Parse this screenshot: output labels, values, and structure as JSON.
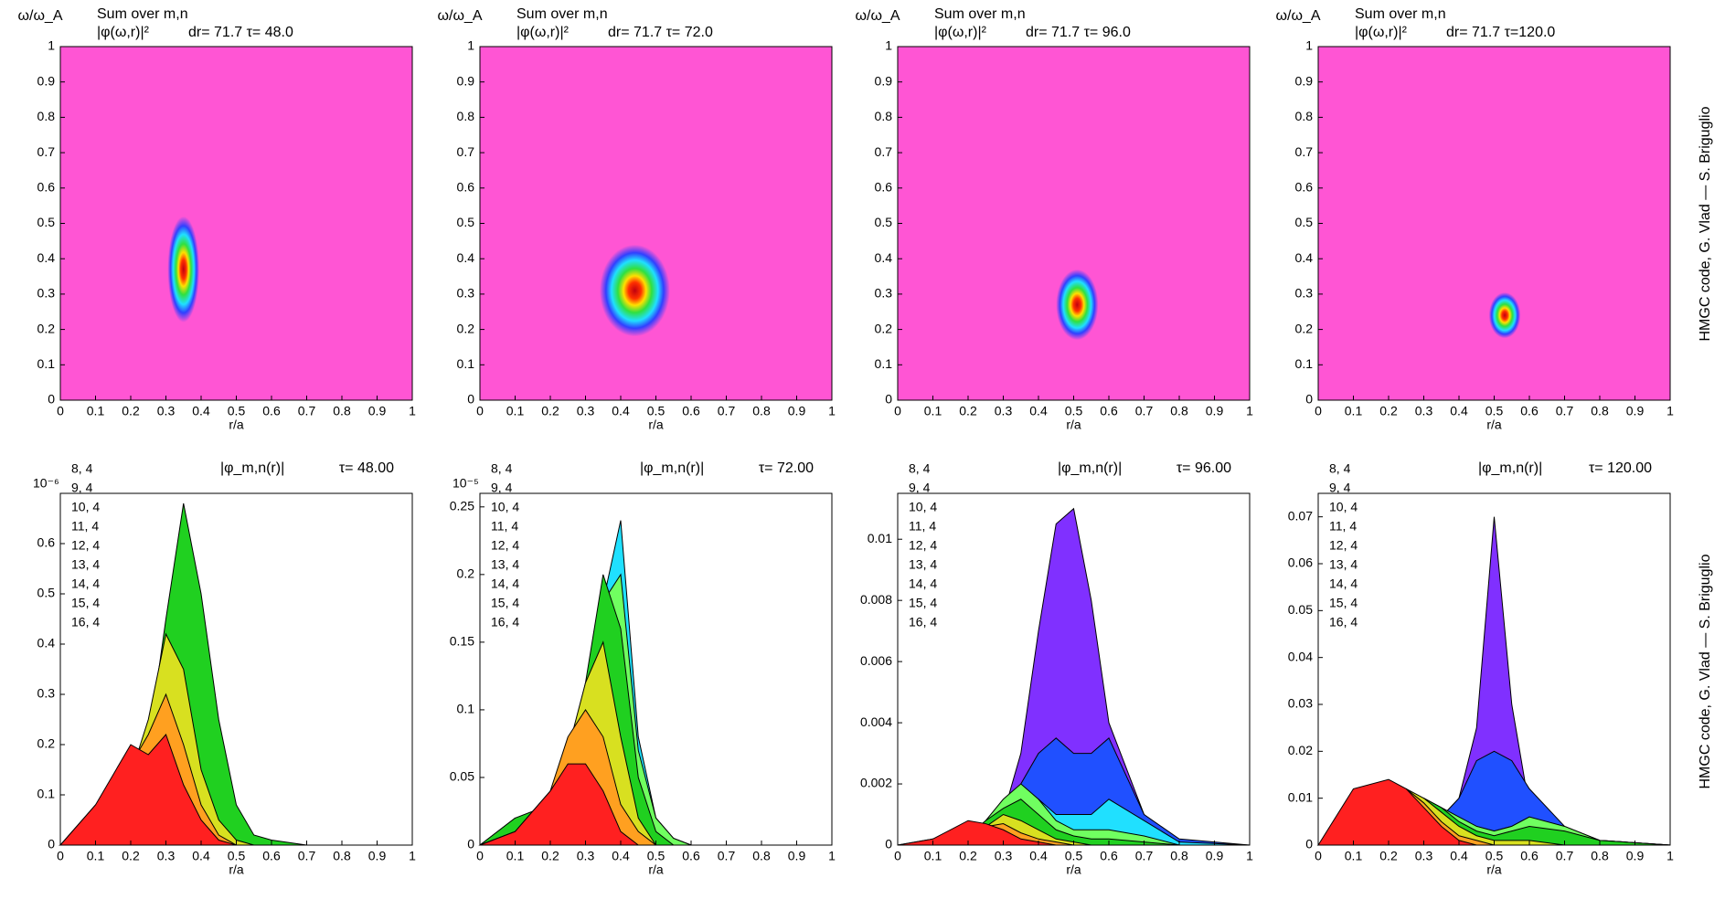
{
  "credits": [
    "HMGC code, G. Vlad — S. Briguglio",
    "HMGC code, G. Vlad — S. Briguglio"
  ],
  "chart_data": [
    {
      "type": "heatmap",
      "ylabel": "ω/ω_A",
      "title": "Sum over m,n",
      "subtitle": "|φ(ω,r)|²",
      "annotation": "dr= 71.7 τ= 48.0",
      "xlabel": "r/a",
      "color": "#ff55d4",
      "xlim": [
        0,
        1
      ],
      "ylim": [
        0,
        1
      ],
      "xticks": [
        0,
        0.1,
        0.2,
        0.3,
        0.4,
        0.5,
        0.6,
        0.7,
        0.8,
        0.9,
        1
      ],
      "yticks": [
        0,
        0.1,
        0.2,
        0.3,
        0.4,
        0.5,
        0.6,
        0.7,
        0.8,
        0.9,
        1
      ],
      "peak": {
        "r": 0.35,
        "omega": 0.37,
        "dr": 0.045,
        "domega": 0.15
      }
    },
    {
      "type": "heatmap",
      "ylabel": "ω/ω_A",
      "title": "Sum over m,n",
      "subtitle": "|φ(ω,r)|²",
      "annotation": "dr= 71.7 τ= 72.0",
      "xlabel": "r/a",
      "color": "#ff55d4",
      "xlim": [
        0,
        1
      ],
      "ylim": [
        0,
        1
      ],
      "xticks": [
        0,
        0.1,
        0.2,
        0.3,
        0.4,
        0.5,
        0.6,
        0.7,
        0.8,
        0.9,
        1
      ],
      "yticks": [
        0,
        0.1,
        0.2,
        0.3,
        0.4,
        0.5,
        0.6,
        0.7,
        0.8,
        0.9,
        1
      ],
      "peak": {
        "r": 0.44,
        "omega": 0.31,
        "dr": 0.1,
        "domega": 0.13
      }
    },
    {
      "type": "heatmap",
      "ylabel": "ω/ω_A",
      "title": "Sum over m,n",
      "subtitle": "|φ(ω,r)|²",
      "annotation": "dr= 71.7 τ= 96.0",
      "xlabel": "r/a",
      "color": "#ff55d4",
      "xlim": [
        0,
        1
      ],
      "ylim": [
        0,
        1
      ],
      "xticks": [
        0,
        0.1,
        0.2,
        0.3,
        0.4,
        0.5,
        0.6,
        0.7,
        0.8,
        0.9,
        1
      ],
      "yticks": [
        0,
        0.1,
        0.2,
        0.3,
        0.4,
        0.5,
        0.6,
        0.7,
        0.8,
        0.9,
        1
      ],
      "peak": {
        "r": 0.51,
        "omega": 0.27,
        "dr": 0.06,
        "domega": 0.1
      }
    },
    {
      "type": "heatmap",
      "ylabel": "ω/ω_A",
      "title": "Sum over m,n",
      "subtitle": "|φ(ω,r)|²",
      "annotation": "dr= 71.7 τ=120.0",
      "xlabel": "r/a",
      "color": "#ff55d4",
      "xlim": [
        0,
        1
      ],
      "ylim": [
        0,
        1
      ],
      "xticks": [
        0,
        0.1,
        0.2,
        0.3,
        0.4,
        0.5,
        0.6,
        0.7,
        0.8,
        0.9,
        1
      ],
      "yticks": [
        0,
        0.1,
        0.2,
        0.3,
        0.4,
        0.5,
        0.6,
        0.7,
        0.8,
        0.9,
        1
      ],
      "peak": {
        "r": 0.53,
        "omega": 0.24,
        "dr": 0.045,
        "domega": 0.065
      }
    },
    {
      "type": "area",
      "title": "|φ_m,n(r)|",
      "annotation": "τ= 48.00",
      "xlabel": "r/a",
      "yscale": "10⁻⁶",
      "xlim": [
        0,
        1
      ],
      "ylim": [
        0,
        0.7
      ],
      "xticks": [
        0,
        0.1,
        0.2,
        0.3,
        0.4,
        0.5,
        0.6,
        0.7,
        0.8,
        0.9,
        1
      ],
      "yticks": [
        0,
        0.1,
        0.2,
        0.3,
        0.4,
        0.5,
        0.6
      ],
      "x": [
        0,
        0.1,
        0.2,
        0.25,
        0.3,
        0.35,
        0.4,
        0.45,
        0.5,
        0.55,
        0.6,
        0.7,
        0.8,
        1
      ],
      "series": [
        {
          "name": "8, 4",
          "color": "#e000e0",
          "values": [
            0,
            0.02,
            0.03,
            0.03,
            0.03,
            0.02,
            0.01,
            0.005,
            0,
            0,
            0,
            0,
            0,
            0
          ]
        },
        {
          "name": "9, 4",
          "color": "#8030ff",
          "values": [
            0,
            0.06,
            0.1,
            0.1,
            0.08,
            0.06,
            0.03,
            0.01,
            0,
            0,
            0,
            0,
            0,
            0
          ]
        },
        {
          "name": "10, 4",
          "color": "#2050ff",
          "values": [
            0,
            0.08,
            0.14,
            0.15,
            0.16,
            0.12,
            0.06,
            0.02,
            0.01,
            0,
            0,
            0,
            0,
            0
          ]
        },
        {
          "name": "11, 4",
          "color": "#20e0ff",
          "values": [
            0,
            0.05,
            0.12,
            0.18,
            0.24,
            0.2,
            0.1,
            0.04,
            0.01,
            0,
            0,
            0,
            0,
            0
          ]
        },
        {
          "name": "12, 4",
          "color": "#70ff60",
          "values": [
            0,
            0.04,
            0.12,
            0.22,
            0.4,
            0.45,
            0.3,
            0.12,
            0.03,
            0.01,
            0,
            0,
            0,
            0
          ]
        },
        {
          "name": "13, 4",
          "color": "#20d020",
          "values": [
            0,
            0.03,
            0.1,
            0.2,
            0.45,
            0.68,
            0.5,
            0.25,
            0.08,
            0.02,
            0.01,
            0,
            0,
            0
          ]
        },
        {
          "name": "14, 4",
          "color": "#d8e020",
          "values": [
            0,
            0.04,
            0.14,
            0.25,
            0.42,
            0.35,
            0.15,
            0.05,
            0.01,
            0,
            0,
            0,
            0,
            0
          ]
        },
        {
          "name": "15, 4",
          "color": "#ffa020",
          "values": [
            0,
            0.06,
            0.16,
            0.22,
            0.3,
            0.2,
            0.08,
            0.02,
            0,
            0,
            0,
            0,
            0,
            0
          ]
        },
        {
          "name": "16, 4",
          "color": "#ff2020",
          "values": [
            0,
            0.08,
            0.2,
            0.18,
            0.22,
            0.12,
            0.05,
            0.01,
            0,
            0,
            0,
            0,
            0,
            0
          ]
        }
      ]
    },
    {
      "type": "area",
      "title": "|φ_m,n(r)|",
      "annotation": "τ= 72.00",
      "xlabel": "r/a",
      "yscale": "10⁻⁵",
      "xlim": [
        0,
        1
      ],
      "ylim": [
        0,
        0.26
      ],
      "xticks": [
        0,
        0.1,
        0.2,
        0.3,
        0.4,
        0.5,
        0.6,
        0.7,
        0.8,
        0.9,
        1
      ],
      "yticks": [
        0,
        0.05,
        0.1,
        0.15,
        0.2,
        0.25
      ],
      "x": [
        0,
        0.1,
        0.2,
        0.25,
        0.3,
        0.35,
        0.4,
        0.45,
        0.5,
        0.55,
        0.6,
        0.7,
        0.8,
        1
      ],
      "series": [
        {
          "name": "8, 4",
          "color": "#e000e0",
          "values": [
            0,
            0.005,
            0.005,
            0.005,
            0,
            0,
            0,
            0,
            0,
            0,
            0,
            0,
            0,
            0
          ]
        },
        {
          "name": "9, 4",
          "color": "#8030ff",
          "values": [
            0,
            0.01,
            0.01,
            0.01,
            0.005,
            0.005,
            0,
            0,
            0,
            0,
            0,
            0,
            0,
            0
          ]
        },
        {
          "name": "10, 4",
          "color": "#2050ff",
          "values": [
            0,
            0.005,
            0.01,
            0.02,
            0.04,
            0.06,
            0.05,
            0.02,
            0.01,
            0.005,
            0,
            0,
            0,
            0
          ]
        },
        {
          "name": "11, 4",
          "color": "#20e0ff",
          "values": [
            0,
            0.005,
            0.01,
            0.03,
            0.08,
            0.18,
            0.24,
            0.08,
            0.02,
            0.005,
            0,
            0,
            0,
            0
          ]
        },
        {
          "name": "12, 4",
          "color": "#70ff60",
          "values": [
            0,
            0.02,
            0.02,
            0.05,
            0.1,
            0.18,
            0.2,
            0.07,
            0.02,
            0.005,
            0,
            0,
            0,
            0
          ]
        },
        {
          "name": "13, 4",
          "color": "#20d020",
          "values": [
            0,
            0.02,
            0.03,
            0.06,
            0.12,
            0.2,
            0.16,
            0.05,
            0.01,
            0,
            0,
            0,
            0,
            0
          ]
        },
        {
          "name": "14, 4",
          "color": "#d8e020",
          "values": [
            0,
            0.01,
            0.03,
            0.07,
            0.12,
            0.15,
            0.08,
            0.02,
            0,
            0,
            0,
            0,
            0,
            0
          ]
        },
        {
          "name": "15, 4",
          "color": "#ffa020",
          "values": [
            0,
            0.01,
            0.04,
            0.08,
            0.1,
            0.08,
            0.03,
            0.01,
            0,
            0,
            0,
            0,
            0,
            0
          ]
        },
        {
          "name": "16, 4",
          "color": "#ff2020",
          "values": [
            0,
            0.01,
            0.04,
            0.06,
            0.06,
            0.04,
            0.01,
            0,
            0,
            0,
            0,
            0,
            0,
            0
          ]
        }
      ]
    },
    {
      "type": "area",
      "title": "|φ_m,n(r)|",
      "annotation": "τ= 96.00",
      "xlabel": "r/a",
      "xlim": [
        0,
        1
      ],
      "ylim": [
        0,
        0.0115
      ],
      "xticks": [
        0,
        0.1,
        0.2,
        0.3,
        0.4,
        0.5,
        0.6,
        0.7,
        0.8,
        0.9,
        1
      ],
      "yticks": [
        0,
        0.002,
        0.004,
        0.006,
        0.008,
        0.01
      ],
      "x": [
        0,
        0.1,
        0.2,
        0.25,
        0.3,
        0.35,
        0.4,
        0.45,
        0.5,
        0.55,
        0.6,
        0.7,
        0.8,
        1
      ],
      "series": [
        {
          "name": "8, 4",
          "color": "#e000e0",
          "values": [
            0,
            0.0002,
            0.0002,
            0.0001,
            0,
            0,
            0,
            0,
            0,
            0,
            0,
            0,
            0,
            0
          ]
        },
        {
          "name": "9, 4",
          "color": "#8030ff",
          "values": [
            0,
            0,
            0.0002,
            0.0005,
            0.001,
            0.003,
            0.007,
            0.0105,
            0.011,
            0.008,
            0.004,
            0.001,
            0,
            0
          ]
        },
        {
          "name": "10, 4",
          "color": "#2050ff",
          "values": [
            0,
            0,
            0.0002,
            0.0005,
            0.001,
            0.002,
            0.003,
            0.0035,
            0.003,
            0.003,
            0.0035,
            0.001,
            0.0002,
            0
          ]
        },
        {
          "name": "11, 4",
          "color": "#20e0ff",
          "values": [
            0,
            0,
            0.0002,
            0.0004,
            0.001,
            0.0015,
            0.0015,
            0.001,
            0.001,
            0.001,
            0.0015,
            0.0008,
            0.0001,
            0
          ]
        },
        {
          "name": "12, 4",
          "color": "#70ff60",
          "values": [
            0,
            0,
            0.0003,
            0.0008,
            0.0015,
            0.002,
            0.0015,
            0.0008,
            0.0005,
            0.0005,
            0.0005,
            0.0003,
            0,
            0
          ]
        },
        {
          "name": "13, 4",
          "color": "#20d020",
          "values": [
            0,
            0,
            0.0003,
            0.0008,
            0.0012,
            0.0015,
            0.001,
            0.0005,
            0.0003,
            0.0002,
            0.0002,
            0.0001,
            0,
            0
          ]
        },
        {
          "name": "14, 4",
          "color": "#d8e020",
          "values": [
            0,
            0,
            0.0003,
            0.0006,
            0.001,
            0.0008,
            0.0005,
            0.0002,
            0.0001,
            0,
            0,
            0,
            0,
            0
          ]
        },
        {
          "name": "15, 4",
          "color": "#ffa020",
          "values": [
            0,
            0.0001,
            0.0005,
            0.0006,
            0.0007,
            0.0004,
            0.0002,
            0.0001,
            0,
            0,
            0,
            0,
            0,
            0
          ]
        },
        {
          "name": "16, 4",
          "color": "#ff2020",
          "values": [
            0,
            0.0002,
            0.0008,
            0.0007,
            0.0005,
            0.0002,
            0.0001,
            0,
            0,
            0,
            0,
            0,
            0,
            0
          ]
        }
      ]
    },
    {
      "type": "area",
      "title": "|φ_m,n(r)|",
      "annotation": "τ= 120.00",
      "xlabel": "r/a",
      "xlim": [
        0,
        1
      ],
      "ylim": [
        0,
        0.075
      ],
      "xticks": [
        0,
        0.1,
        0.2,
        0.3,
        0.4,
        0.5,
        0.6,
        0.7,
        0.8,
        0.9,
        1
      ],
      "yticks": [
        0,
        0.01,
        0.02,
        0.03,
        0.04,
        0.05,
        0.06,
        0.07
      ],
      "x": [
        0,
        0.1,
        0.2,
        0.25,
        0.3,
        0.35,
        0.4,
        0.45,
        0.5,
        0.55,
        0.6,
        0.7,
        0.8,
        1
      ],
      "series": [
        {
          "name": "8, 4",
          "color": "#e000e0",
          "values": [
            0,
            0.001,
            0.001,
            0.001,
            0,
            0,
            0,
            0,
            0,
            0,
            0,
            0,
            0,
            0
          ]
        },
        {
          "name": "9, 4",
          "color": "#8030ff",
          "values": [
            0,
            0,
            0.001,
            0.002,
            0.004,
            0.006,
            0.01,
            0.025,
            0.07,
            0.03,
            0.008,
            0.002,
            0,
            0
          ]
        },
        {
          "name": "10, 4",
          "color": "#2050ff",
          "values": [
            0,
            0,
            0.001,
            0.002,
            0.004,
            0.006,
            0.01,
            0.018,
            0.02,
            0.018,
            0.012,
            0.004,
            0.001,
            0
          ]
        },
        {
          "name": "11, 4",
          "color": "#20e0ff",
          "values": [
            0,
            0,
            0.001,
            0.002,
            0.003,
            0.004,
            0.004,
            0.004,
            0.003,
            0.004,
            0.006,
            0.003,
            0.001,
            0
          ]
        },
        {
          "name": "12, 4",
          "color": "#70ff60",
          "values": [
            0,
            0.002,
            0.005,
            0.008,
            0.01,
            0.008,
            0.006,
            0.004,
            0.003,
            0.004,
            0.006,
            0.004,
            0.001,
            0
          ]
        },
        {
          "name": "13, 4",
          "color": "#20d020",
          "values": [
            0,
            0.004,
            0.008,
            0.01,
            0.01,
            0.008,
            0.005,
            0.003,
            0.002,
            0.003,
            0.004,
            0.003,
            0.001,
            0
          ]
        },
        {
          "name": "14, 4",
          "color": "#d8e020",
          "values": [
            0,
            0.006,
            0.01,
            0.012,
            0.01,
            0.007,
            0.004,
            0.002,
            0.001,
            0.001,
            0.001,
            0,
            0,
            0
          ]
        },
        {
          "name": "15, 4",
          "color": "#ffa020",
          "values": [
            0,
            0.008,
            0.012,
            0.012,
            0.009,
            0.005,
            0.002,
            0.001,
            0,
            0,
            0,
            0,
            0,
            0
          ]
        },
        {
          "name": "16, 4",
          "color": "#ff2020",
          "values": [
            0,
            0.012,
            0.014,
            0.012,
            0.008,
            0.004,
            0.001,
            0,
            0,
            0,
            0,
            0,
            0,
            0
          ]
        }
      ]
    }
  ]
}
